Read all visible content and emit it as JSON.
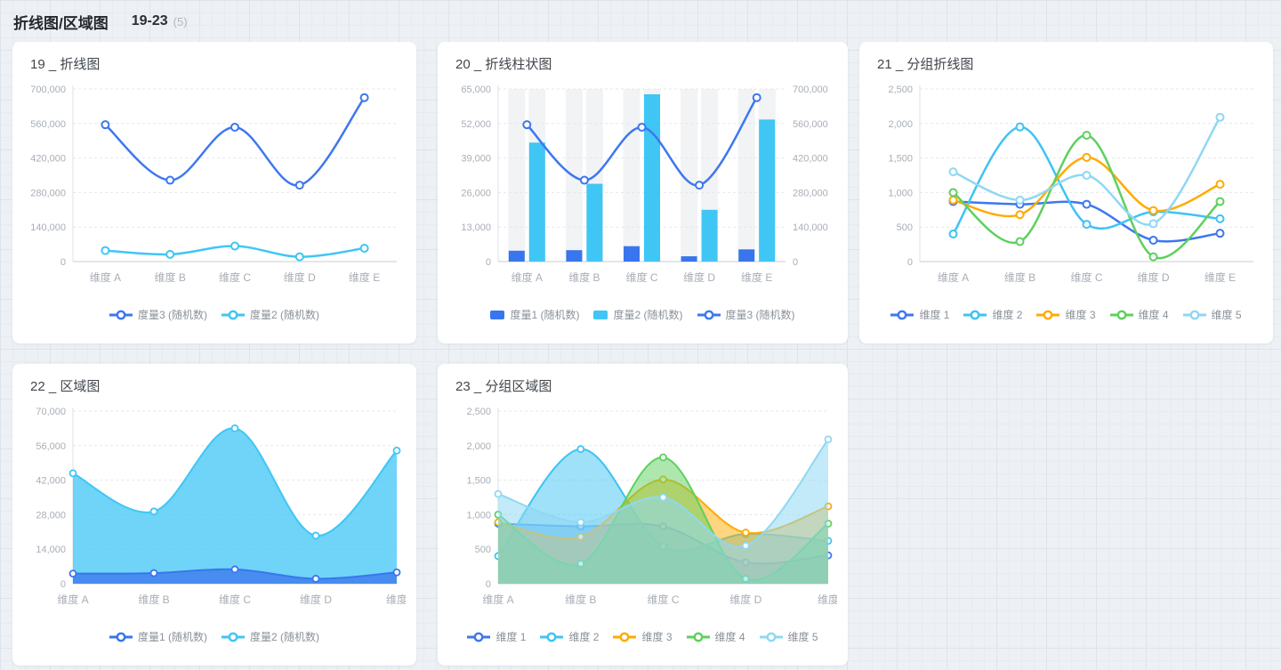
{
  "page": {
    "header": {
      "title": "折线图/区域图",
      "range": "19-23",
      "count": "(5)"
    },
    "colors": {
      "blue": "#3d77f0",
      "cyan": "#3fc6f5",
      "orange": "#ffab00",
      "green": "#5ed05e",
      "light_cyan": "#8fd8f3",
      "axis_label": "#a8aeb6",
      "legend_text": "#8b9199",
      "gridline": "#e4e7eb",
      "band": "#f2f3f5"
    }
  },
  "chart_data": [
    {
      "id": "chart-19",
      "type": "line",
      "title": "19 _ 折线图",
      "categories": [
        "维度 A",
        "维度 B",
        "维度 C",
        "维度 D",
        "维度 E"
      ],
      "edge_points": false,
      "y_left": {
        "min": 0,
        "max": 700000,
        "step": 140000
      },
      "series": [
        {
          "name": "度量3 (随机数)",
          "type": "line",
          "color": "#3d77f0",
          "axis": "left",
          "values": [
            555000,
            330000,
            545000,
            310000,
            665000
          ]
        },
        {
          "name": "度量2 (随机数)",
          "type": "line",
          "color": "#3fc6f5",
          "axis": "left",
          "values": [
            44800,
            29300,
            63000,
            19500,
            54000
          ]
        }
      ],
      "legend_position": "bottom"
    },
    {
      "id": "chart-20",
      "type": "bar",
      "title": "20 _ 折线柱状图",
      "categories": [
        "维度 A",
        "维度 B",
        "维度 C",
        "维度 D",
        "维度 E"
      ],
      "edge_points": false,
      "category_bands": true,
      "y_left": {
        "min": 0,
        "max": 65000,
        "step": 13000
      },
      "y_right": {
        "min": 0,
        "max": 700000,
        "step": 140000
      },
      "series": [
        {
          "name": "度量1 (随机数)",
          "type": "bar",
          "color": "#3976ed",
          "axis": "left",
          "values": [
            4100,
            4300,
            5800,
            2000,
            4600
          ]
        },
        {
          "name": "度量2 (随机数)",
          "type": "bar",
          "color": "#3fc6f5",
          "axis": "left",
          "values": [
            44800,
            29300,
            63000,
            19500,
            53500
          ]
        },
        {
          "name": "度量3 (随机数)",
          "type": "line",
          "color": "#3d77f0",
          "axis": "right",
          "values": [
            555000,
            330000,
            545000,
            310000,
            665000
          ]
        }
      ],
      "legend_position": "bottom"
    },
    {
      "id": "chart-21",
      "type": "line",
      "title": "21 _ 分组折线图",
      "categories": [
        "维度 A",
        "维度 B",
        "维度 C",
        "维度 D",
        "维度 E"
      ],
      "edge_points": false,
      "y_left": {
        "min": 0,
        "max": 2500,
        "step": 500
      },
      "series": [
        {
          "name": "维度 1",
          "type": "line",
          "color": "#3d77f0",
          "axis": "left",
          "values": [
            870,
            830,
            830,
            310,
            410
          ]
        },
        {
          "name": "维度 2",
          "type": "line",
          "color": "#3fc3f2",
          "axis": "left",
          "values": [
            400,
            1950,
            540,
            720,
            620
          ]
        },
        {
          "name": "维度 3",
          "type": "line",
          "color": "#ffab00",
          "axis": "left",
          "values": [
            890,
            680,
            1510,
            740,
            1120
          ]
        },
        {
          "name": "维度 4",
          "type": "line",
          "color": "#5ed05e",
          "axis": "left",
          "values": [
            1000,
            290,
            1830,
            70,
            870
          ]
        },
        {
          "name": "维度 5",
          "type": "line",
          "color": "#8fd8f3",
          "axis": "left",
          "values": [
            1300,
            890,
            1250,
            550,
            2090
          ]
        }
      ],
      "legend_position": "bottom"
    },
    {
      "id": "chart-22",
      "type": "area",
      "title": "22 _ 区域图",
      "categories": [
        "维度 A",
        "维度 B",
        "维度 C",
        "维度 D",
        "维度"
      ],
      "edge_points": true,
      "y_left": {
        "min": 0,
        "max": 70000,
        "step": 14000
      },
      "series": [
        {
          "name": "度量2 (随机数)",
          "type": "area",
          "color": "#3fc6f5",
          "axis": "left",
          "fill_opacity": 0.75,
          "values": [
            44800,
            29300,
            63000,
            19500,
            54000
          ],
          "legend_order": 1
        },
        {
          "name": "度量1 (随机数)",
          "type": "area",
          "color": "#3976ed",
          "axis": "left",
          "fill_opacity": 0.75,
          "values": [
            4100,
            4300,
            5800,
            2000,
            4600
          ],
          "legend_order": 0
        }
      ],
      "legend_position": "bottom"
    },
    {
      "id": "chart-23",
      "type": "area",
      "title": "23 _ 分组区域图",
      "categories": [
        "维度 A",
        "维度 B",
        "维度 C",
        "维度 D",
        "维度"
      ],
      "edge_points": true,
      "y_left": {
        "min": 0,
        "max": 2500,
        "step": 500
      },
      "series": [
        {
          "name": "维度 1",
          "type": "area",
          "color": "#3d77f0",
          "axis": "left",
          "fill_opacity": 0.45,
          "values": [
            870,
            830,
            830,
            310,
            410
          ]
        },
        {
          "name": "维度 2",
          "type": "area",
          "color": "#3fc3f2",
          "axis": "left",
          "fill_opacity": 0.5,
          "values": [
            400,
            1950,
            540,
            720,
            620
          ]
        },
        {
          "name": "维度 3",
          "type": "area",
          "color": "#ffab00",
          "axis": "left",
          "fill_opacity": 0.5,
          "values": [
            890,
            680,
            1510,
            740,
            1120
          ]
        },
        {
          "name": "维度 4",
          "type": "area",
          "color": "#5ed05e",
          "axis": "left",
          "fill_opacity": 0.5,
          "values": [
            1000,
            290,
            1830,
            70,
            870
          ]
        },
        {
          "name": "维度 5",
          "type": "area",
          "color": "#8fd8f3",
          "axis": "left",
          "fill_opacity": 0.55,
          "values": [
            1300,
            890,
            1250,
            550,
            2090
          ]
        }
      ],
      "legend_position": "bottom"
    }
  ],
  "layout_note": ""
}
